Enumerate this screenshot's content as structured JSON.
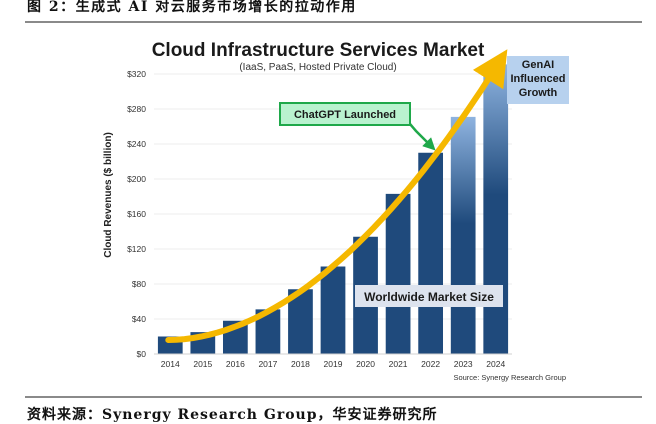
{
  "figure": {
    "caption": "图 2：生成式 AI 对云服务市场增长的拉动作用",
    "footer": "资料来源：Synergy Research Group，华安证券研究所"
  },
  "colors": {
    "bar": "#1f4a7c",
    "bar_highlight_top": "#8fb4e0",
    "curve": "#f5b800",
    "chatgpt_box_fill": "#b9f2cf",
    "chatgpt_box_stroke": "#1fa84a",
    "genai_box_fill": "#b7d1ee",
    "market_box_fill": "#dde3ee"
  },
  "chart_data": {
    "type": "bar",
    "title": "Cloud Infrastructure Services Market",
    "subtitle": "(IaaS, PaaS, Hosted Private Cloud)",
    "xlabel": "",
    "ylabel": "Cloud Revenues ($ billion)",
    "ylim": [
      0,
      320
    ],
    "yticks": [
      0,
      40,
      80,
      120,
      160,
      200,
      240,
      280,
      320
    ],
    "ytick_labels": [
      "$0",
      "$40",
      "$80",
      "$120",
      "$160",
      "$200",
      "$240",
      "$280",
      "$320"
    ],
    "grid": true,
    "categories": [
      "2014",
      "2015",
      "2016",
      "2017",
      "2018",
      "2019",
      "2020",
      "2021",
      "2022",
      "2023",
      "2024"
    ],
    "values": [
      20,
      25,
      38,
      51,
      74,
      100,
      134,
      183,
      230,
      271,
      331
    ],
    "genai_influenced_years": [
      "2023",
      "2024"
    ],
    "source": "Source: Synergy Research Group",
    "annotations": {
      "chatgpt": "ChatGPT Launched",
      "chatgpt_year": "2022",
      "market": "Worldwide Market Size",
      "genai": [
        "GenAI",
        "Influenced",
        "Growth"
      ]
    },
    "trend_curve": "exponential growth arrow over bars"
  }
}
